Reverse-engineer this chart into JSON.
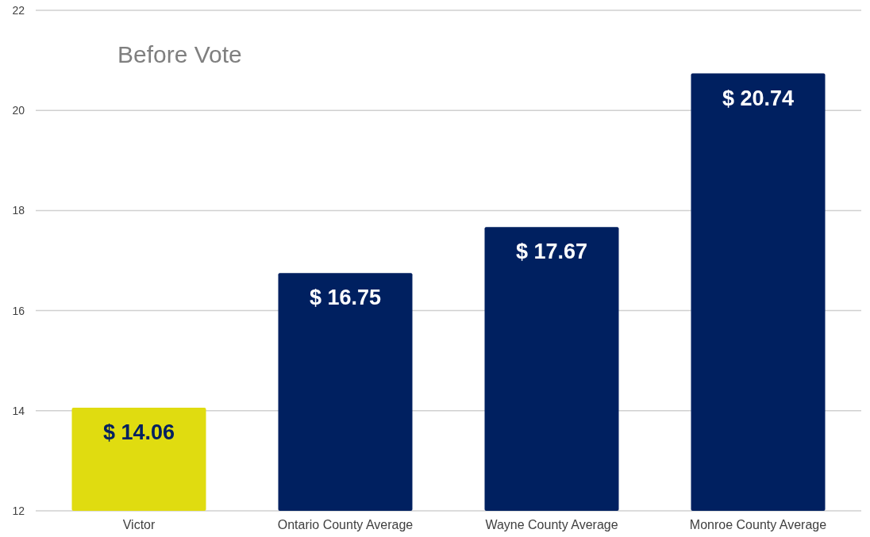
{
  "chart_data": {
    "type": "bar",
    "title": "Before Vote",
    "categories": [
      "Victor",
      "Ontario County Average",
      "Wayne County Average",
      "Monroe County Average"
    ],
    "values": [
      14.06,
      16.75,
      17.67,
      20.74
    ],
    "colors": [
      "#e0dc10",
      "#002060",
      "#002060",
      "#002060"
    ],
    "value_labels": [
      "$ 14.06",
      "$ 16.75",
      "$ 17.67",
      "$ 20.74"
    ],
    "ylim": [
      12,
      22
    ],
    "yticks": [
      12,
      14,
      16,
      18,
      20,
      22
    ],
    "grid": "y"
  }
}
